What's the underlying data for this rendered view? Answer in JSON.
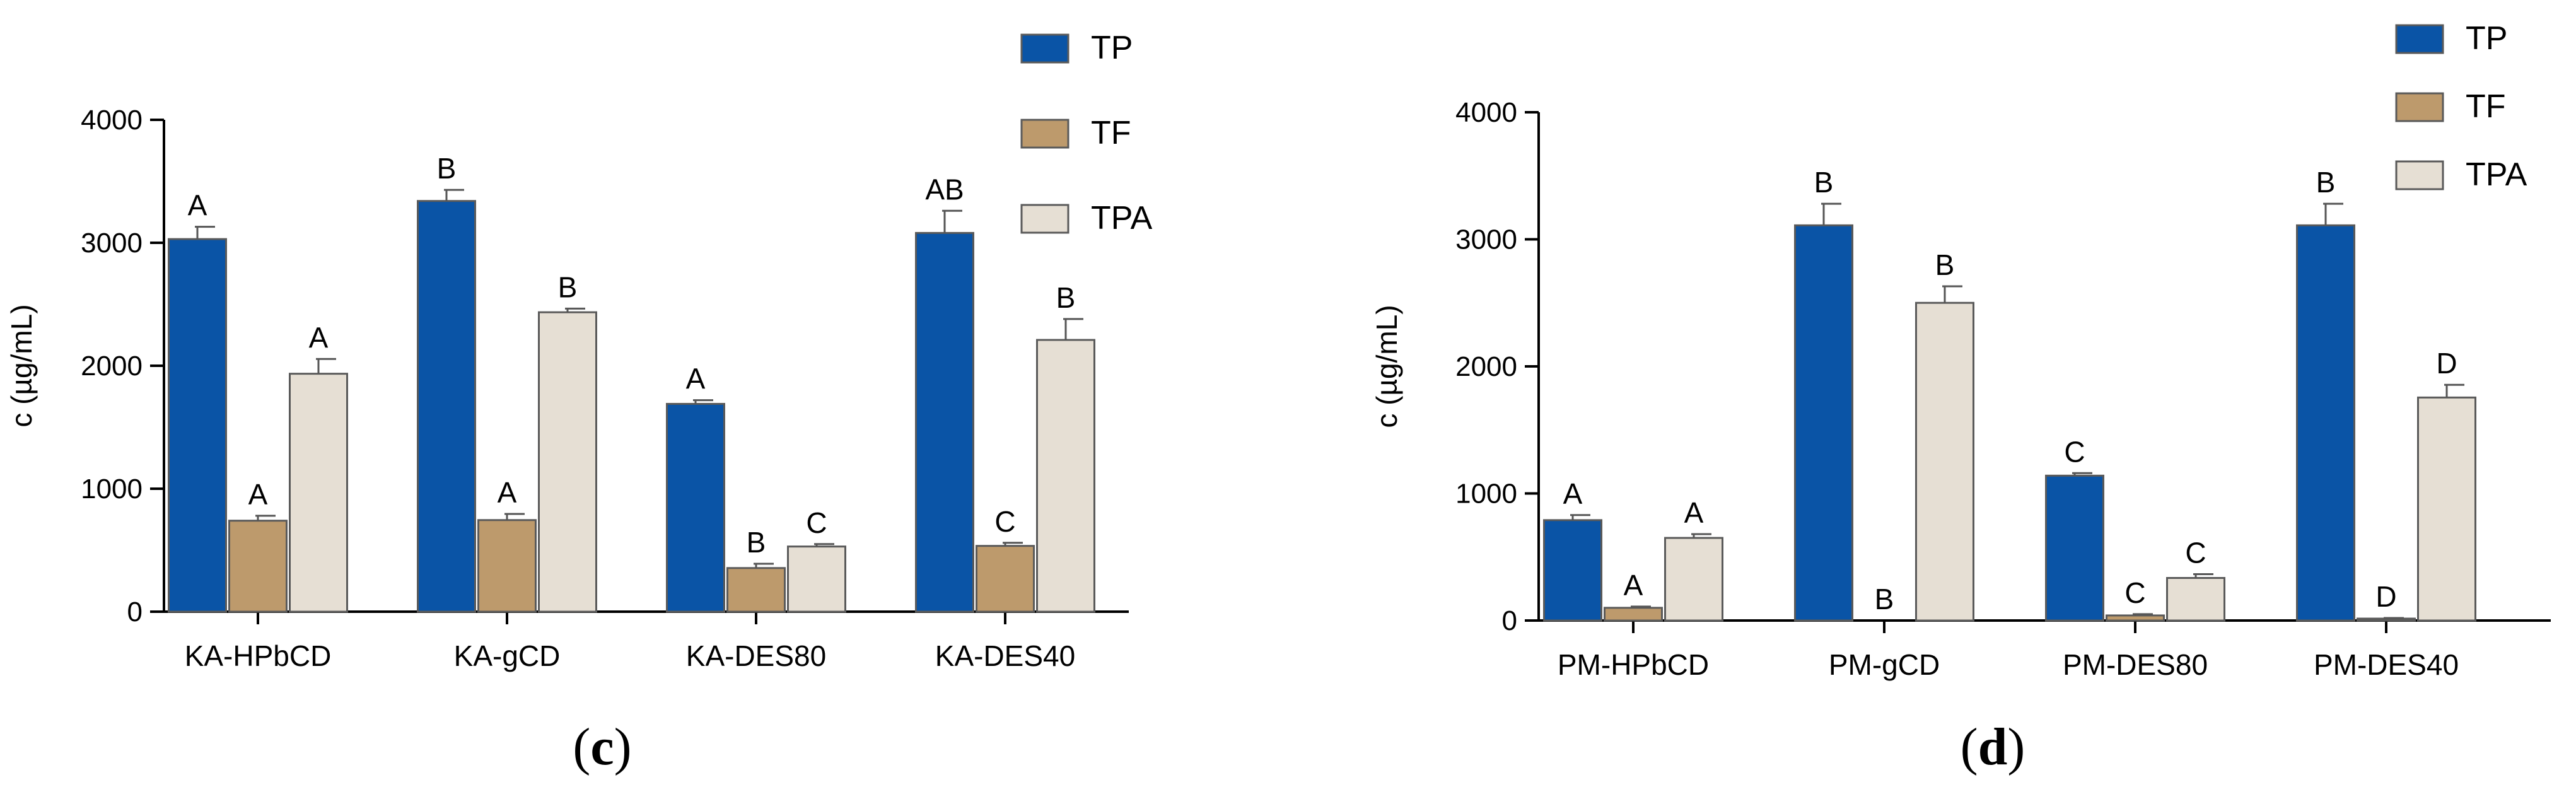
{
  "chart_data": [
    {
      "type": "bar",
      "panel_label": "c",
      "title": "",
      "xlabel": "",
      "ylabel": "c (µg/mL)",
      "ylim": [
        0,
        4000
      ],
      "yticks": [
        0,
        1000,
        2000,
        3000,
        4000
      ],
      "categories": [
        "KA-HPbCD",
        "KA-gCD",
        "KA-DES80",
        "KA-DES40"
      ],
      "legend_position": "top-right",
      "series": [
        {
          "name": "TP",
          "color": "#0a54a6",
          "values": [
            3030,
            3340,
            1690,
            3080
          ],
          "errors": [
            100,
            90,
            30,
            180
          ],
          "letters": [
            "A",
            "B",
            "A",
            "AB"
          ]
        },
        {
          "name": "TF",
          "color": "#bd9a6c",
          "values": [
            740,
            745,
            355,
            535
          ],
          "errors": [
            40,
            50,
            35,
            25
          ],
          "letters": [
            "A",
            "A",
            "B",
            "C"
          ]
        },
        {
          "name": "TPA",
          "color": "#e6dfd4",
          "values": [
            1935,
            2435,
            530,
            2210
          ],
          "errors": [
            120,
            30,
            20,
            170
          ],
          "letters": [
            "A",
            "B",
            "C",
            "B"
          ]
        }
      ]
    },
    {
      "type": "bar",
      "panel_label": "d",
      "title": "",
      "xlabel": "",
      "ylabel": "c (µg/mL)",
      "ylim": [
        0,
        4000
      ],
      "yticks": [
        0,
        1000,
        2000,
        3000,
        4000
      ],
      "categories": [
        "PM-HPbCD",
        "PM-gCD",
        "PM-DES80",
        "PM-DES40"
      ],
      "legend_position": "top-right",
      "series": [
        {
          "name": "TP",
          "color": "#0a54a6",
          "values": [
            790,
            3110,
            1140,
            3110
          ],
          "errors": [
            40,
            170,
            20,
            170
          ],
          "letters": [
            "A",
            "B",
            "C",
            "B"
          ]
        },
        {
          "name": "TF",
          "color": "#bd9a6c",
          "values": [
            100,
            0,
            40,
            15
          ],
          "errors": [
            10,
            0,
            10,
            5
          ],
          "letters": [
            "A",
            "B",
            "C",
            "D"
          ]
        },
        {
          "name": "TPA",
          "color": "#e6dfd4",
          "values": [
            650,
            2500,
            335,
            1755
          ],
          "errors": [
            30,
            130,
            30,
            100
          ],
          "letters": [
            "A",
            "B",
            "C",
            "D"
          ]
        }
      ]
    }
  ]
}
